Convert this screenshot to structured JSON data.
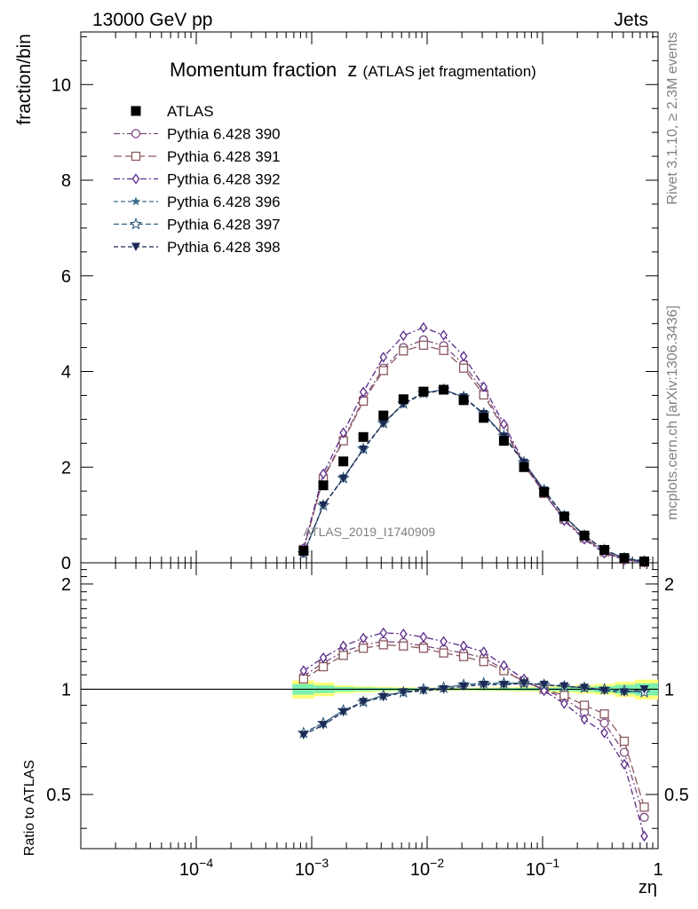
{
  "header": {
    "left": "13000 GeV pp",
    "right": "Jets"
  },
  "side_labels": {
    "rivet": "Rivet 3.1.10, ≥ 2.3M events",
    "mcplots": "mcplots.cern.ch [arXiv:1306.3436]"
  },
  "watermark": "ATLAS_2019_I1740909",
  "colors": {
    "p390": "#7b4b7f",
    "p391": "#8b5a5f",
    "p392": "#5a2a8a",
    "p396": "#3c6e8c",
    "p397": "#2f5a7a",
    "p398": "#1c2a55",
    "band_inner": "#7cf0b0",
    "band_outer": "#ffff77"
  },
  "chart_data": [
    {
      "type": "line",
      "title_main": "Momentum fraction",
      "title_sym": "z",
      "title_sub": "(ATLAS jet fragmentation)",
      "ylabel": "fraction/bin",
      "xlabel": "zη",
      "xscale": "log",
      "xlim": [
        1e-05,
        1
      ],
      "ylim": [
        0,
        11.1
      ],
      "yticks": [
        0,
        2,
        4,
        6,
        8,
        10
      ],
      "ytick_labels": [
        "0",
        "2",
        "4",
        "6",
        "8",
        "10"
      ],
      "xtick_labels": [
        "10^-4",
        "10^-3",
        "10^-2",
        "10^-1",
        "1"
      ],
      "legend_position": "top-left",
      "x": [
        0.00085,
        0.00126,
        0.00188,
        0.0028,
        0.00418,
        0.00623,
        0.0093,
        0.0139,
        0.0207,
        0.0309,
        0.0462,
        0.069,
        0.103,
        0.154,
        0.23,
        0.343,
        0.51,
        0.76
      ],
      "series": [
        {
          "name": "ATLAS",
          "key": "data",
          "marker": "square",
          "values": [
            0.25,
            1.62,
            2.12,
            2.63,
            3.08,
            3.42,
            3.58,
            3.62,
            3.4,
            3.03,
            2.55,
            2.0,
            1.48,
            0.97,
            0.57,
            0.27,
            0.1,
            0.03
          ]
        },
        {
          "name": "Pythia 6.428 390",
          "key": "p390",
          "marker": "circle",
          "values": [
            0.29,
            1.78,
            2.58,
            3.42,
            4.07,
            4.5,
            4.66,
            4.54,
            4.15,
            3.58,
            2.83,
            2.06,
            1.46,
            0.91,
            0.52,
            0.23,
            0.07,
            0.014
          ]
        },
        {
          "name": "Pythia 6.428 391",
          "key": "p391",
          "marker": "square-open",
          "values": [
            0.28,
            1.76,
            2.55,
            3.38,
            4.02,
            4.43,
            4.55,
            4.44,
            4.07,
            3.51,
            2.79,
            2.04,
            1.45,
            0.91,
            0.52,
            0.23,
            0.072,
            0.014
          ]
        },
        {
          "name": "Pythia 6.428 392",
          "key": "p392",
          "marker": "diamond",
          "values": [
            0.3,
            1.86,
            2.72,
            3.57,
            4.3,
            4.75,
            4.92,
            4.76,
            4.32,
            3.68,
            2.9,
            2.1,
            1.47,
            0.88,
            0.49,
            0.2,
            0.063,
            0.012
          ]
        },
        {
          "name": "Pythia 6.428 396",
          "key": "p396",
          "marker": "star",
          "values": [
            0.19,
            1.2,
            1.77,
            2.38,
            2.92,
            3.33,
            3.55,
            3.62,
            3.47,
            3.12,
            2.65,
            2.1,
            1.52,
            0.98,
            0.57,
            0.27,
            0.097,
            0.03
          ]
        },
        {
          "name": "Pythia 6.428 397",
          "key": "p397",
          "marker": "star-open",
          "values": [
            0.19,
            1.2,
            1.77,
            2.38,
            2.92,
            3.33,
            3.55,
            3.62,
            3.47,
            3.12,
            2.65,
            2.1,
            1.52,
            0.98,
            0.57,
            0.27,
            0.097,
            0.03
          ]
        },
        {
          "name": "Pythia 6.428 398",
          "key": "p398",
          "marker": "triangle-down",
          "values": [
            0.19,
            1.2,
            1.76,
            2.37,
            2.91,
            3.32,
            3.54,
            3.61,
            3.46,
            3.11,
            2.64,
            2.09,
            1.51,
            0.97,
            0.57,
            0.27,
            0.096,
            0.03
          ]
        }
      ]
    },
    {
      "type": "line",
      "ylabel": "Ratio to ATLAS",
      "xlabel": "zη",
      "xscale": "log",
      "xlim": [
        1e-05,
        1
      ],
      "ylim": [
        0.35,
        2.3
      ],
      "ytick_labels": [
        "0.5",
        "1",
        "2"
      ],
      "reference": 1,
      "band_x_edges": [
        0.00068,
        0.00105,
        0.00157,
        0.00233,
        0.00348,
        0.0052,
        0.0077,
        0.0115,
        0.0172,
        0.0257,
        0.0383,
        0.057,
        0.085,
        0.127,
        0.19,
        0.283,
        0.423,
        0.63,
        1.0
      ],
      "band_inner_halfwidth": [
        0.035,
        0.025,
        0.015,
        0.012,
        0.01,
        0.008,
        0.007,
        0.006,
        0.006,
        0.007,
        0.008,
        0.009,
        0.01,
        0.012,
        0.015,
        0.02,
        0.03,
        0.04
      ],
      "band_outer_halfwidth": [
        0.06,
        0.045,
        0.025,
        0.02,
        0.016,
        0.013,
        0.011,
        0.01,
        0.01,
        0.011,
        0.013,
        0.015,
        0.018,
        0.022,
        0.028,
        0.035,
        0.05,
        0.065
      ],
      "series": [
        {
          "key": "p390",
          "values": [
            1.09,
            1.19,
            1.28,
            1.34,
            1.37,
            1.36,
            1.33,
            1.3,
            1.27,
            1.23,
            1.14,
            1.05,
            1.0,
            0.94,
            0.86,
            0.8,
            0.66,
            0.43
          ]
        },
        {
          "key": "p391",
          "values": [
            1.07,
            1.16,
            1.25,
            1.31,
            1.34,
            1.33,
            1.31,
            1.27,
            1.24,
            1.2,
            1.13,
            1.05,
            1.0,
            0.96,
            0.9,
            0.85,
            0.71,
            0.46
          ]
        },
        {
          "key": "p392",
          "values": [
            1.13,
            1.23,
            1.33,
            1.4,
            1.45,
            1.44,
            1.41,
            1.37,
            1.33,
            1.28,
            1.17,
            1.07,
            0.99,
            0.91,
            0.82,
            0.75,
            0.61,
            0.38
          ]
        },
        {
          "key": "p396",
          "values": [
            0.75,
            0.8,
            0.87,
            0.92,
            0.96,
            0.98,
            1.0,
            1.01,
            1.03,
            1.04,
            1.04,
            1.04,
            1.03,
            1.02,
            1.01,
            1.0,
            0.99,
            0.98
          ]
        },
        {
          "key": "p397",
          "values": [
            0.75,
            0.8,
            0.87,
            0.92,
            0.96,
            0.98,
            1.0,
            1.01,
            1.03,
            1.04,
            1.04,
            1.04,
            1.03,
            1.02,
            1.01,
            1.0,
            0.99,
            0.98
          ]
        },
        {
          "key": "p398",
          "values": [
            0.74,
            0.79,
            0.86,
            0.92,
            0.95,
            0.98,
            0.99,
            1.0,
            1.02,
            1.03,
            1.03,
            1.04,
            1.03,
            1.02,
            1.01,
            0.99,
            0.98,
            1.0
          ]
        }
      ]
    }
  ]
}
